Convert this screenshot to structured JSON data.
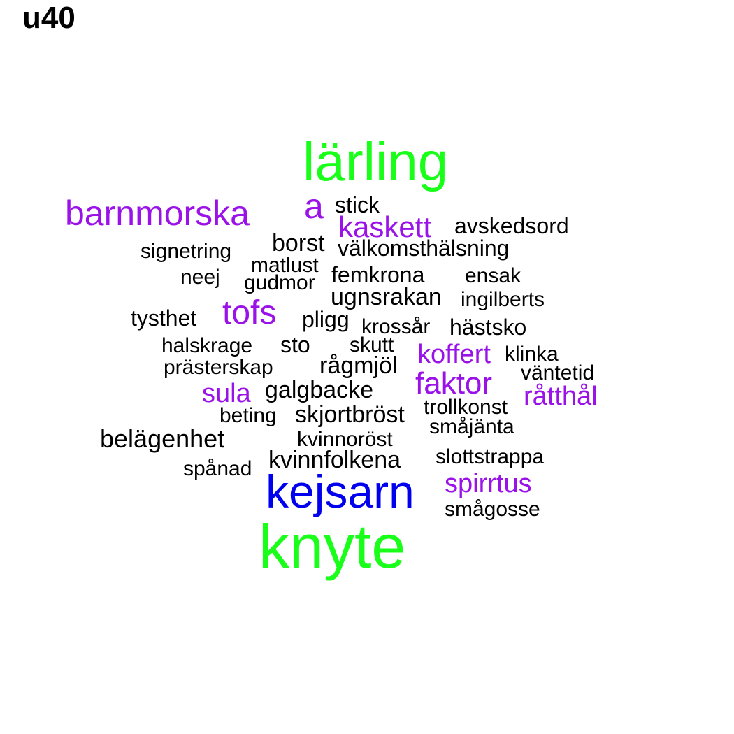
{
  "title": "u40",
  "colors": {
    "green": "#1aff1a",
    "blue": "#0000ee",
    "purple": "#9a12e8",
    "black": "#000000"
  },
  "words": [
    {
      "text": "lärling",
      "color": "green"
    },
    {
      "text": "knyte",
      "color": "green"
    },
    {
      "text": "kejsarn",
      "color": "blue"
    },
    {
      "text": "barnmorska",
      "color": "purple"
    },
    {
      "text": "a",
      "color": "purple"
    },
    {
      "text": "kaskett",
      "color": "purple"
    },
    {
      "text": "tofs",
      "color": "purple"
    },
    {
      "text": "koffert",
      "color": "purple"
    },
    {
      "text": "faktor",
      "color": "purple"
    },
    {
      "text": "sula",
      "color": "purple"
    },
    {
      "text": "råtthål",
      "color": "purple"
    },
    {
      "text": "spirrtus",
      "color": "purple"
    },
    {
      "text": "stick",
      "color": "black"
    },
    {
      "text": "avskedsord",
      "color": "black"
    },
    {
      "text": "borst",
      "color": "black"
    },
    {
      "text": "välkomsthälsning",
      "color": "black"
    },
    {
      "text": "signetring",
      "color": "black"
    },
    {
      "text": "matlust",
      "color": "black"
    },
    {
      "text": "neej",
      "color": "black"
    },
    {
      "text": "gudmor",
      "color": "black"
    },
    {
      "text": "femkrona",
      "color": "black"
    },
    {
      "text": "ensak",
      "color": "black"
    },
    {
      "text": "ugnsrakan",
      "color": "black"
    },
    {
      "text": "ingilberts",
      "color": "black"
    },
    {
      "text": "tysthet",
      "color": "black"
    },
    {
      "text": "pligg",
      "color": "black"
    },
    {
      "text": "krossår",
      "color": "black"
    },
    {
      "text": "hästsko",
      "color": "black"
    },
    {
      "text": "halskrage",
      "color": "black"
    },
    {
      "text": "sto",
      "color": "black"
    },
    {
      "text": "skutt",
      "color": "black"
    },
    {
      "text": "klinka",
      "color": "black"
    },
    {
      "text": "prästerskap",
      "color": "black"
    },
    {
      "text": "rågmjöl",
      "color": "black"
    },
    {
      "text": "väntetid",
      "color": "black"
    },
    {
      "text": "galgbacke",
      "color": "black"
    },
    {
      "text": "trollkonst",
      "color": "black"
    },
    {
      "text": "beting",
      "color": "black"
    },
    {
      "text": "skjortbröst",
      "color": "black"
    },
    {
      "text": "småjänta",
      "color": "black"
    },
    {
      "text": "belägenhet",
      "color": "black"
    },
    {
      "text": "kvinnoröst",
      "color": "black"
    },
    {
      "text": "kvinnfolkena",
      "color": "black"
    },
    {
      "text": "slottstrappa",
      "color": "black"
    },
    {
      "text": "spånad",
      "color": "black"
    },
    {
      "text": "smågosse",
      "color": "black"
    }
  ]
}
